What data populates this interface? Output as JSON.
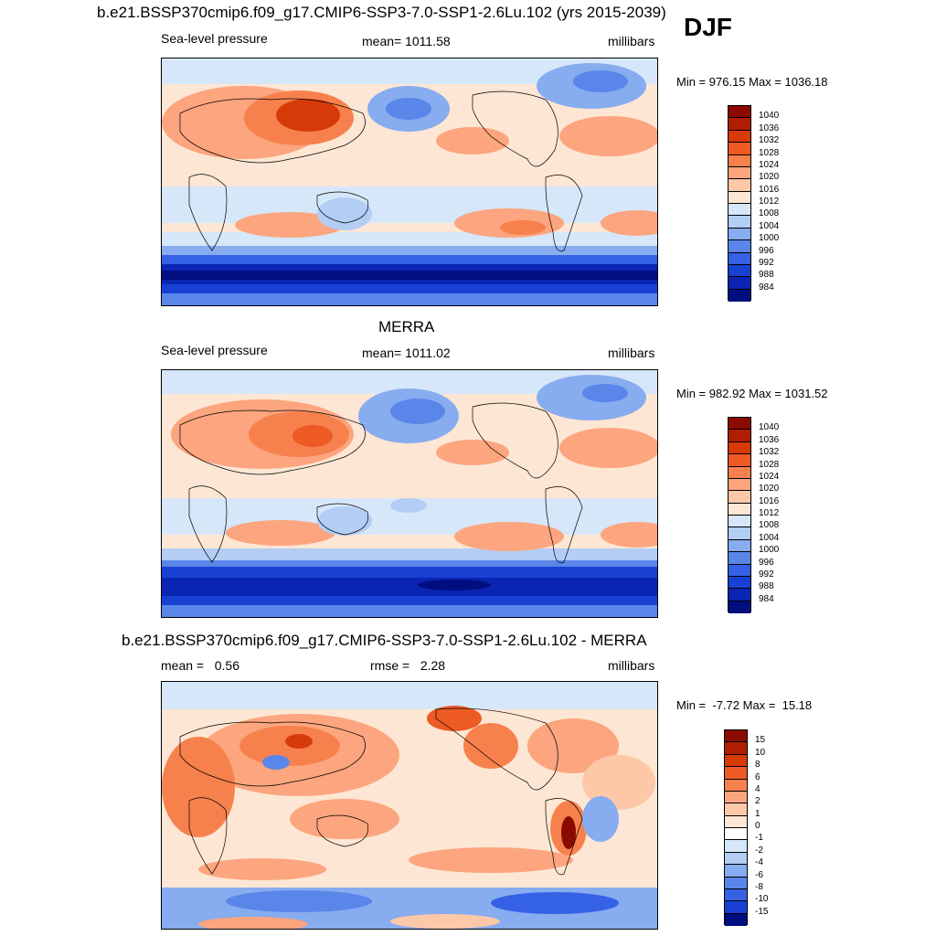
{
  "season": "DJF",
  "panels": [
    {
      "title": "b.e21.BSSP370cmip6.f09_g17.CMIP6-SSP3-7.0-SSP1-2.6Lu.102 (yrs 2015-2039)",
      "left_label": "Sea-level pressure",
      "center_label": "mean= 1011.58",
      "right_label": "millibars",
      "minmax": "Min = 976.15 Max = 1036.18",
      "colorbar": {
        "labels": [
          "1040",
          "1036",
          "1032",
          "1028",
          "1024",
          "1020",
          "1016",
          "1012",
          "1008",
          "1004",
          "1000",
          "996",
          "992",
          "988",
          "984"
        ],
        "colors": [
          "#8b0a00",
          "#b01d02",
          "#d63a08",
          "#ee5a24",
          "#f7814d",
          "#fca57e",
          "#fdc8a8",
          "#fde6d4",
          "#d6e7fa",
          "#b3cdf5",
          "#87acef",
          "#5a86ea",
          "#3561e5",
          "#1841d4",
          "#0a24b3",
          "#000e80"
        ]
      }
    },
    {
      "title": "MERRA",
      "left_label": "Sea-level pressure",
      "center_label": "mean= 1011.02",
      "right_label": "millibars",
      "minmax": "Min = 982.92 Max = 1031.52",
      "colorbar": {
        "labels": [
          "1040",
          "1036",
          "1032",
          "1028",
          "1024",
          "1020",
          "1016",
          "1012",
          "1008",
          "1004",
          "1000",
          "996",
          "992",
          "988",
          "984"
        ],
        "colors": [
          "#8b0a00",
          "#b01d02",
          "#d63a08",
          "#ee5a24",
          "#f7814d",
          "#fca57e",
          "#fdc8a8",
          "#fde6d4",
          "#d6e7fa",
          "#b3cdf5",
          "#87acef",
          "#5a86ea",
          "#3561e5",
          "#1841d4",
          "#0a24b3",
          "#000e80"
        ]
      }
    },
    {
      "title": "b.e21.BSSP370cmip6.f09_g17.CMIP6-SSP3-7.0-SSP1-2.6Lu.102 - MERRA",
      "left_label": "mean =   0.56",
      "center_label": "rmse =   2.28",
      "right_label": "millibars",
      "minmax": "Min =  -7.72 Max =  15.18",
      "colorbar": {
        "labels": [
          "15",
          "10",
          "8",
          "6",
          "4",
          "2",
          "1",
          "0",
          "-1",
          "-2",
          "-4",
          "-6",
          "-8",
          "-10",
          "-15"
        ],
        "colors": [
          "#8b0a00",
          "#b01d02",
          "#d63a08",
          "#ee5a24",
          "#f7814d",
          "#fca57e",
          "#fdc8a8",
          "#fde6d4",
          "#ffffff",
          "#d6e7fa",
          "#b3cdf5",
          "#87acef",
          "#5a86ea",
          "#3561e5",
          "#1841d4",
          "#000e80"
        ]
      }
    }
  ]
}
